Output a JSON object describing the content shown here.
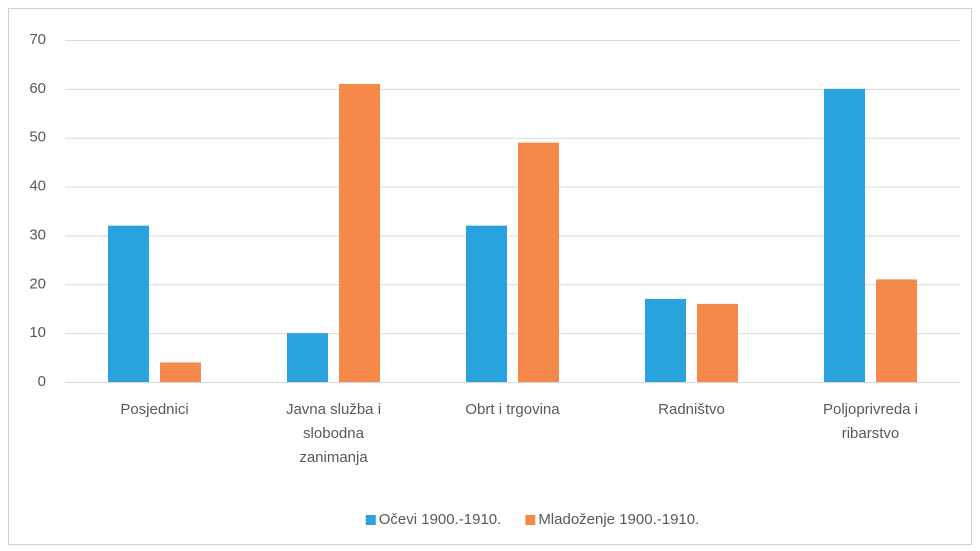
{
  "chart_data": {
    "type": "bar",
    "categories": [
      "Posjednici",
      "Javna služba i slobodna zanimanja",
      "Obrt i trgovina",
      "Radništvo",
      "Poljoprivreda i ribarstvo"
    ],
    "series": [
      {
        "name": "Očevi 1900.-1910.",
        "color": "#29a3dd",
        "values": [
          32,
          10,
          32,
          17,
          60
        ]
      },
      {
        "name": "Mladoženje 1900.-1910.",
        "color": "#f5894a",
        "values": [
          4,
          61,
          49,
          16,
          21
        ]
      }
    ],
    "ylim": [
      0,
      70
    ],
    "yticks": [
      0,
      10,
      20,
      30,
      40,
      50,
      60,
      70
    ],
    "grid": true,
    "legend": "bottom"
  }
}
